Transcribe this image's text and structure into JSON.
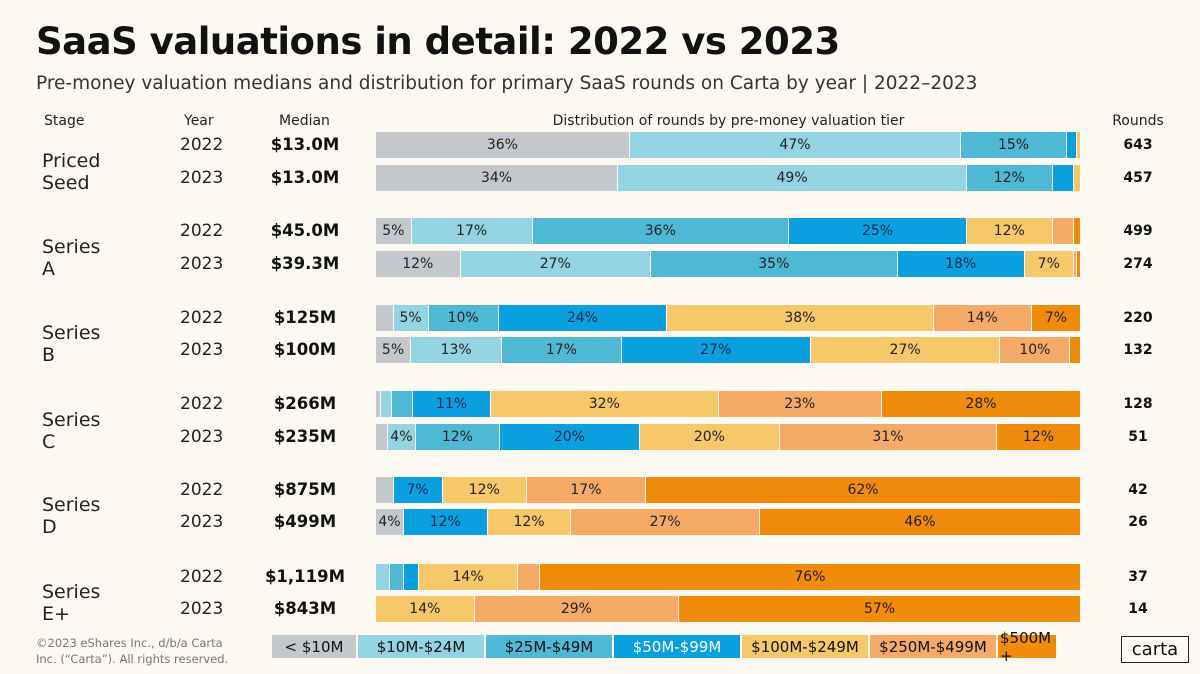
{
  "title": "SaaS valuations in detail: 2022 vs 2023",
  "subtitle": "Pre-money valuation medians and distribution for primary SaaS rounds on Carta by year | 2022–2023",
  "headers": {
    "stage": "Stage",
    "year": "Year",
    "median": "Median",
    "distribution": "Distribution of rounds by pre-money valuation tier",
    "rounds": "Rounds"
  },
  "copyright": "©2023 eShares Inc., d/b/a Carta Inc. (“Carta”). All rights reserved.",
  "logo": "carta",
  "chart_data": {
    "type": "bar",
    "stacked": true,
    "orientation": "horizontal",
    "unit": "%",
    "tiers": [
      "< $10M",
      "$10M-$24M",
      "$25M-$49M",
      "$50M-$99M",
      "$100M-$249M",
      "$250M-$499M",
      "$500M +"
    ],
    "colors": [
      "#c4c7cc",
      "#93d3e2",
      "#4fb9d5",
      "#0aa0e0",
      "#f7c86a",
      "#f5aa68",
      "#f08b0c"
    ],
    "legend_position": "bottom",
    "groups": [
      {
        "stage": "Priced Seed",
        "rows": [
          {
            "year": "2022",
            "median": "$13.0M",
            "rounds": "643",
            "values": [
              36,
              47,
              15,
              1.5,
              0.5,
              0,
              0
            ]
          },
          {
            "year": "2023",
            "median": "$13.0M",
            "rounds": "457",
            "values": [
              34,
              49,
              12,
              3,
              1,
              0,
              0
            ]
          }
        ]
      },
      {
        "stage": "Series A",
        "rows": [
          {
            "year": "2022",
            "median": "$45.0M",
            "rounds": "499",
            "values": [
              5,
              17,
              36,
              25,
              12,
              3,
              1
            ]
          },
          {
            "year": "2023",
            "median": "$39.3M",
            "rounds": "274",
            "values": [
              12,
              27,
              35,
              18,
              7,
              0.5,
              0.5
            ]
          }
        ]
      },
      {
        "stage": "Series B",
        "rows": [
          {
            "year": "2022",
            "median": "$125M",
            "rounds": "220",
            "values": [
              2.5,
              5,
              10,
              24,
              38,
              14,
              7
            ]
          },
          {
            "year": "2023",
            "median": "$100M",
            "rounds": "132",
            "values": [
              5,
              13,
              17,
              27,
              27,
              10,
              1.5
            ]
          }
        ]
      },
      {
        "stage": "Series C",
        "rows": [
          {
            "year": "2022",
            "median": "$266M",
            "rounds": "128",
            "values": [
              0.7,
              1.5,
              3,
              11,
              32,
              23,
              28
            ]
          },
          {
            "year": "2023",
            "median": "$235M",
            "rounds": "51",
            "values": [
              1.7,
              4,
              12,
              20,
              20,
              31,
              12
            ]
          }
        ]
      },
      {
        "stage": "Series D",
        "rows": [
          {
            "year": "2022",
            "median": "$875M",
            "rounds": "42",
            "values": [
              2.5,
              0,
              0,
              7,
              12,
              17,
              62
            ]
          },
          {
            "year": "2023",
            "median": "$499M",
            "rounds": "26",
            "values": [
              4,
              0,
              0,
              12,
              12,
              27,
              46
            ]
          }
        ]
      },
      {
        "stage": "Series E+",
        "rows": [
          {
            "year": "2022",
            "median": "$1,119M",
            "rounds": "37",
            "values": [
              0,
              2,
              2,
              2,
              14,
              3,
              76
            ]
          },
          {
            "year": "2023",
            "median": "$843M",
            "rounds": "14",
            "values": [
              0,
              0,
              0,
              0,
              14,
              29,
              57
            ]
          }
        ]
      }
    ]
  }
}
